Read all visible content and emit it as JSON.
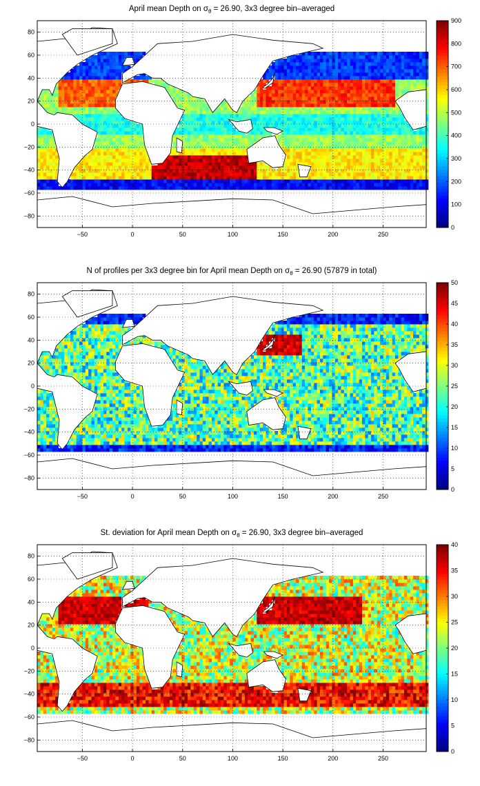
{
  "colors": {
    "ocean_palette": "jet",
    "land": "#ffffff",
    "coast": "#000000",
    "grid": "#000000"
  },
  "chart_data": [
    {
      "type": "heatmap",
      "title": "April mean Depth on σ",
      "title_sub": "θ",
      "title_rest": " = 26.90, 3x3 degree bin–averaged",
      "xlim": [
        -95,
        293
      ],
      "ylim": [
        -90,
        90
      ],
      "xticks": [
        -50,
        0,
        50,
        100,
        150,
        200,
        250
      ],
      "yticks": [
        -80,
        -60,
        -40,
        -20,
        0,
        20,
        40,
        60,
        80
      ],
      "colorbar": {
        "min": 0,
        "max": 900,
        "ticks": [
          0,
          100,
          200,
          300,
          400,
          500,
          600,
          700,
          800,
          900
        ]
      },
      "grid": true,
      "field": "depth"
    },
    {
      "type": "heatmap",
      "title": "N of profiles per 3x3 degree bin for April mean Depth on σ",
      "title_sub": "θ",
      "title_rest": " = 26.90 (57879 in total)",
      "xlim": [
        -95,
        293
      ],
      "ylim": [
        -90,
        90
      ],
      "xticks": [
        -50,
        0,
        50,
        100,
        150,
        200,
        250
      ],
      "yticks": [
        -80,
        -60,
        -40,
        -20,
        0,
        20,
        40,
        60,
        80
      ],
      "colorbar": {
        "min": 0,
        "max": 50,
        "ticks": [
          0,
          5,
          10,
          15,
          20,
          25,
          30,
          35,
          40,
          45,
          50
        ]
      },
      "grid": true,
      "field": "count"
    },
    {
      "type": "heatmap",
      "title": "St. deviation for April mean Depth on σ",
      "title_sub": "θ",
      "title_rest": " = 26.90, 3x3 degree bin–averaged",
      "xlim": [
        -95,
        293
      ],
      "ylim": [
        -90,
        90
      ],
      "xticks": [
        -50,
        0,
        50,
        100,
        150,
        200,
        250
      ],
      "yticks": [
        -80,
        -60,
        -40,
        -20,
        0,
        20,
        40,
        60,
        80
      ],
      "colorbar": {
        "min": 0,
        "max": 40,
        "ticks": [
          0,
          5,
          10,
          15,
          20,
          25,
          30,
          35,
          40
        ]
      },
      "grid": true,
      "field": "std"
    }
  ]
}
